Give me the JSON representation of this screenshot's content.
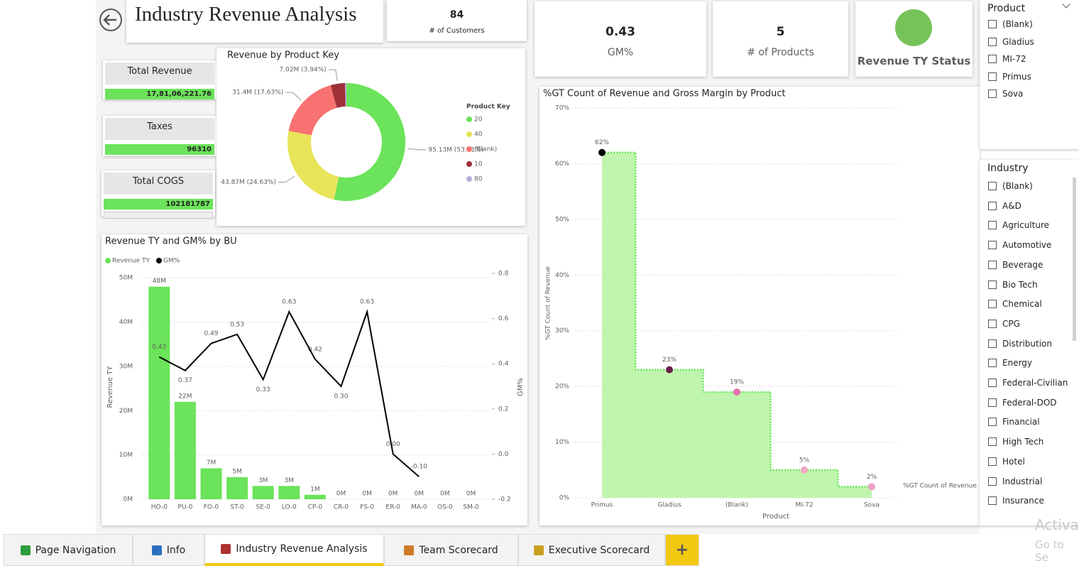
{
  "header": {
    "title": "Industry Revenue Analysis"
  },
  "kpis": {
    "customers": {
      "value": 84,
      "label": "# of Customers"
    },
    "gm": {
      "value": 0.43,
      "label": "GM%"
    },
    "products": {
      "value": 5,
      "label": "# of Products"
    },
    "status": {
      "label": "Revenue TY Status",
      "color": "#77c35a"
    }
  },
  "cards": [
    {
      "label": "Total Revenue",
      "value": "17,81,06,221.76"
    },
    {
      "label": "Taxes",
      "value": "96310"
    },
    {
      "label": "Total COGS",
      "value": "102181787"
    }
  ],
  "slicers": [
    {
      "title": "Product",
      "items": [
        "(Blank)",
        "Gladius",
        "MI-72",
        "Primus",
        "Sova"
      ]
    },
    {
      "title": "Industry",
      "items": [
        "(Blank)",
        "A&D",
        "Agriculture",
        "Automotive",
        "Beverage",
        "Bio Tech",
        "Chemical",
        "CPG",
        "Distribution",
        "Energy",
        "Federal-Civilian",
        "Federal-DOD",
        "Financial",
        "High Tech",
        "Hotel",
        "Industrial",
        "Insurance"
      ]
    }
  ],
  "tabs": {
    "items": [
      "Page Navigation",
      "Info",
      "Industry Revenue Analysis",
      "Team Scorecard",
      "Executive Scorecard"
    ],
    "active": 2,
    "add": "+"
  },
  "watermark": {
    "line1": "Activa",
    "line2": "Go to Se"
  },
  "chart_data": [
    {
      "type": "donut",
      "title": "Revenue by Product Key",
      "legend_title": "Product Key",
      "categories": [
        "20",
        "40",
        "(Blank)",
        "10",
        "80"
      ],
      "values": [
        95130000,
        43870000,
        31400000,
        7020000,
        690000
      ],
      "value_labels": [
        "95.13M (53.41%)",
        "43.87M (24.63%)",
        "31.4M (17.63%)",
        "7.02M (3.94%)",
        null
      ],
      "colors": [
        "#6be35a",
        "#e8e45a",
        "#f87272",
        "#9e3039",
        "#b9aedc"
      ]
    },
    {
      "type": "combo",
      "title": "Revenue TY and GM% by BU",
      "ylabel": "Revenue TY",
      "y2label": "GM%",
      "legend": "top-left",
      "categories": [
        "HO-0",
        "PU-0",
        "FO-0",
        "ST-0",
        "SE-0",
        "LO-0",
        "CP-0",
        "CR-0",
        "FS-0",
        "ER-0",
        "MA-0",
        "OS-0",
        "SM-0"
      ],
      "category_color": "#e07a9a",
      "series": [
        {
          "name": "Revenue TY",
          "kind": "bar",
          "color": "#6be35a",
          "values": [
            48000000,
            22000000,
            7000000,
            5000000,
            3000000,
            3000000,
            1000000,
            0,
            0,
            0,
            0,
            0,
            0
          ],
          "value_labels": [
            "48M",
            "22M",
            "7M",
            "5M",
            "3M",
            "3M",
            "1M",
            "0M",
            "0M",
            "0M",
            "0M",
            "0M",
            "0M"
          ]
        },
        {
          "name": "GM%",
          "kind": "line",
          "axis": "y2",
          "color": "#000000",
          "values": [
            0.43,
            0.37,
            0.49,
            0.53,
            0.33,
            0.63,
            0.42,
            0.3,
            0.63,
            0.0,
            -0.1,
            null,
            null
          ],
          "value_labels": [
            "0.43",
            "0.37",
            "0.49",
            "0.53",
            "0.33",
            "0.63",
            "0.42",
            "0.30",
            "0.63",
            "0.00",
            "-0.10",
            null,
            null
          ]
        }
      ],
      "ylim": [
        0,
        51000000
      ],
      "yticks": [
        {
          "value": 0,
          "label": "0M"
        },
        {
          "value": 10000000,
          "label": "10M"
        },
        {
          "value": 20000000,
          "label": "20M"
        },
        {
          "value": 30000000,
          "label": "30M"
        },
        {
          "value": 40000000,
          "label": "40M"
        },
        {
          "value": 50000000,
          "label": "50M"
        }
      ],
      "y2lim": [
        -0.2,
        0.8
      ],
      "y2ticks": [
        -0.2,
        {
          "value": 0,
          "label": "0.0"
        },
        0.2,
        0.4,
        0.6,
        0.8
      ],
      "grid": true
    },
    {
      "type": "step-area",
      "title": "%GT Count of Revenue and Gross Margin by Product",
      "xlabel": "Product",
      "ylabel": "%GT Count of Revenue",
      "categories": [
        "Primus",
        "Gladius",
        "(Blank)",
        "MI-72",
        "Sova"
      ],
      "series": [
        {
          "name": "%GT Count of Revenue",
          "color": "#6be35a",
          "fill": "#bff5ad",
          "values": [
            62,
            23,
            19,
            5,
            2
          ],
          "value_labels": [
            "62%",
            "23%",
            "19%",
            "5%",
            "2%"
          ],
          "marker_colors": [
            "#000000",
            "#6b1e4a",
            "#e86fb0",
            "#f2a9c4",
            "#f0a0c8"
          ]
        }
      ],
      "ylim": [
        0,
        70
      ],
      "yticks": [
        {
          "value": 0,
          "label": "0%"
        },
        {
          "value": 10,
          "label": "10%"
        },
        {
          "value": 20,
          "label": "20%"
        },
        {
          "value": 30,
          "label": "30%"
        },
        {
          "value": 40,
          "label": "40%"
        },
        {
          "value": 50,
          "label": "50%"
        },
        {
          "value": 60,
          "label": "60%"
        },
        {
          "value": 70,
          "label": "70%"
        }
      ],
      "grid": true
    }
  ]
}
